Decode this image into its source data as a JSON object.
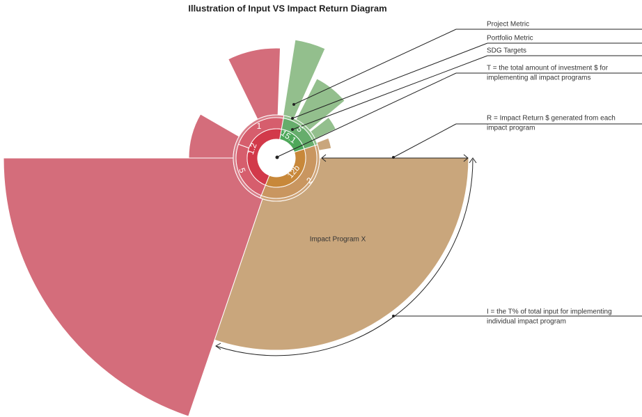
{
  "title": "Illustration of Input VS Impact Return Diagram",
  "legend": {
    "project_metric": "Project Metric",
    "portfolio_metric": "Portfolio Metric",
    "sdg_targets": "SDG Targets"
  },
  "notes": {
    "t_line1": "T = the total amount of investment $ for",
    "t_line2": "implementing all impact programs",
    "r_line1": "R = Impact Return $ generated from each",
    "r_line2": "impact program",
    "i_line1": "I = the T% of total input for implementing",
    "i_line2": "individual impact program"
  },
  "program_label": "Impact Program X",
  "ring_labels": {
    "red_mid_top": "1",
    "red_mid_bottom": "5",
    "green_mid": "5",
    "brown_mid": "2",
    "red_inner": "1.2",
    "green_inner": "15.1",
    "brown_inner": "12b"
  }
}
